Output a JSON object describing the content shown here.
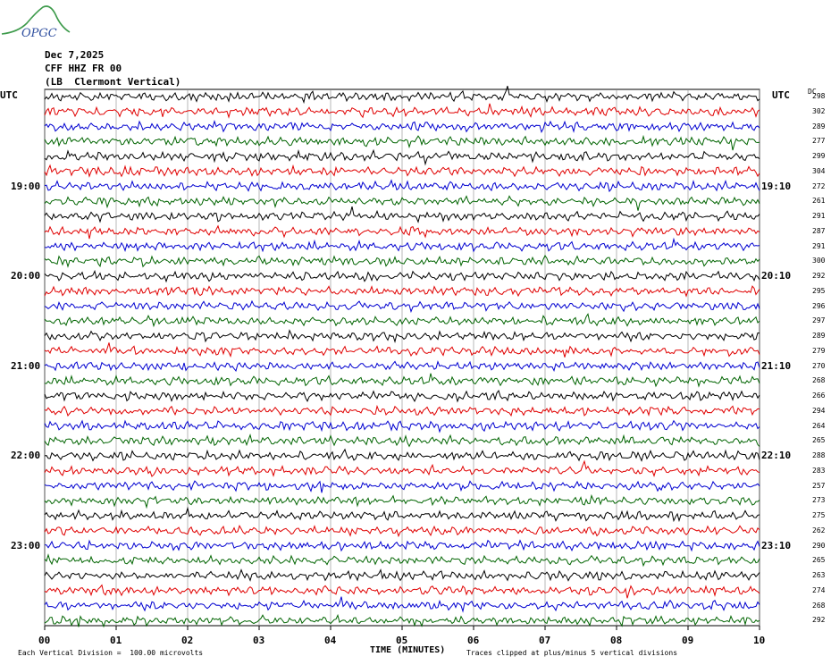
{
  "header": {
    "logo_text": "OPGC",
    "date": "Dec 7,2025",
    "station": "CFF HHZ FR 00",
    "location": "(LB  Clermont Vertical)"
  },
  "chart_data": {
    "type": "line",
    "title": "",
    "xlabel": "TIME (MINUTES)",
    "x_ticks": [
      "00",
      "01",
      "02",
      "03",
      "04",
      "05",
      "06",
      "07",
      "08",
      "09",
      "10"
    ],
    "xlim": [
      0,
      10
    ],
    "left_axis_label": "UTC",
    "right_axis_label": "UTC",
    "dc_label": "DC",
    "left_hour_labels": [
      {
        "row": 6,
        "label": "19:00"
      },
      {
        "row": 12,
        "label": "20:00"
      },
      {
        "row": 18,
        "label": "21:00"
      },
      {
        "row": 24,
        "label": "22:00"
      },
      {
        "row": 30,
        "label": "23:00"
      }
    ],
    "right_hour_labels": [
      {
        "row": 6,
        "label": "19:10"
      },
      {
        "row": 12,
        "label": "20:10"
      },
      {
        "row": 18,
        "label": "21:10"
      },
      {
        "row": 24,
        "label": "22:10"
      },
      {
        "row": 30,
        "label": "23:10"
      }
    ],
    "trace_colors": [
      "#000000",
      "#e00000",
      "#0000d0",
      "#006400"
    ],
    "dc_offsets": [
      298,
      302,
      289,
      277,
      299,
      304,
      272,
      261,
      291,
      287,
      291,
      300,
      292,
      295,
      296,
      297,
      289,
      279,
      270,
      268,
      266,
      294,
      264,
      265,
      288,
      283,
      257,
      273,
      275,
      262,
      290,
      265,
      263,
      274,
      268,
      292
    ],
    "grid": true,
    "footer_left": "Each Vertical Division =  100.00 microvolts",
    "footer_right": "Traces clipped at plus/minus 5 vertical divisions"
  }
}
